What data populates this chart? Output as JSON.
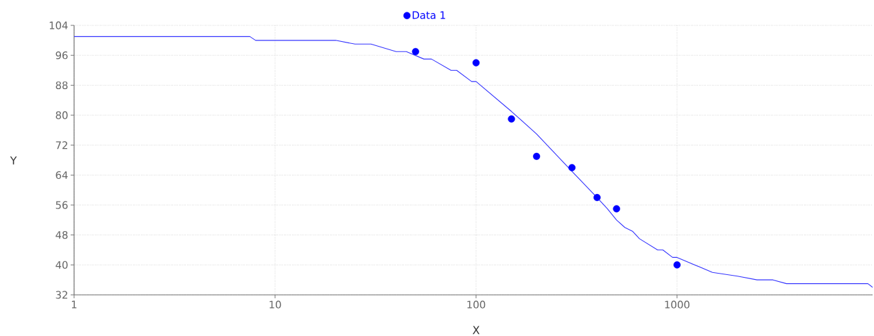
{
  "chart_data": {
    "type": "scatter",
    "xlabel": "X",
    "ylabel": "Y",
    "log": "x",
    "xlim": [
      1,
      9400
    ],
    "ylim": [
      32,
      104
    ],
    "xticks": [
      1,
      10,
      100,
      1000
    ],
    "yticks": [
      32,
      40,
      48,
      56,
      64,
      72,
      80,
      88,
      96,
      104
    ],
    "grid": true,
    "legend": "top",
    "series": [
      {
        "name": "Data 1",
        "color": "#0000ff",
        "marker": "circle",
        "x": [
          50,
          100,
          150,
          200,
          300,
          400,
          500,
          1000
        ],
        "values": [
          97,
          94,
          79,
          69,
          66,
          58,
          55,
          40
        ]
      },
      {
        "type": "line",
        "color": "#3333ff",
        "marker": "none",
        "line_style": "solid",
        "x": [
          1,
          7.5,
          8,
          20,
          25,
          30,
          40,
          45,
          55,
          60,
          75,
          80,
          95,
          100,
          150,
          200,
          300,
          400,
          450,
          500,
          550,
          600,
          650,
          800,
          850,
          950,
          1000,
          1500,
          2000,
          2500,
          3000,
          3500,
          8900,
          9400
        ],
        "values": [
          101,
          101,
          100,
          100,
          99,
          99,
          97,
          97,
          95,
          95,
          92,
          92,
          89,
          89,
          81,
          75,
          65,
          58,
          55,
          52,
          50,
          49,
          47,
          44,
          44,
          42,
          42,
          38,
          37,
          36,
          36,
          35,
          35,
          34
        ]
      }
    ]
  }
}
